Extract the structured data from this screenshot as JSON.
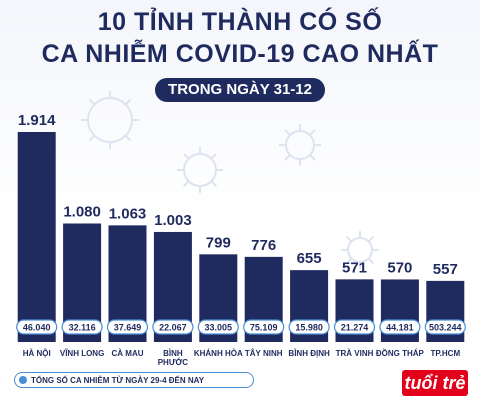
{
  "header": {
    "title_line1": "10 TỈNH THÀNH CÓ SỐ",
    "title_line2": "CA NHIỄM COVID-19 CAO NHẤT",
    "subtitle": "TRONG NGÀY 31-12"
  },
  "legend": {
    "label": "TỔNG SỐ CA NHIỄM TỪ NGÀY 29-4 ĐẾN NAY"
  },
  "logo": {
    "text": "tuổi trẻ"
  },
  "colors": {
    "bar": "#1f2a5e",
    "title": "#1f2a5e",
    "pill": "#4a8fd6",
    "logo": "#e3001b"
  },
  "chart_data": {
    "type": "bar",
    "title": "10 TỈNH THÀNH CÓ SỐ CA NHIỄM COVID-19 CAO NHẤT",
    "subtitle": "TRONG NGÀY 31-12",
    "categories": [
      "HÀ NỘI",
      "VĨNH LONG",
      "CÀ MAU",
      "BÌNH PHƯỚC",
      "KHÁNH HÒA",
      "TÂY NINH",
      "BÌNH ĐỊNH",
      "TRÀ VINH",
      "ĐỒNG THÁP",
      "TP.HCM"
    ],
    "values": [
      1914,
      1080,
      1063,
      1003,
      799,
      776,
      655,
      571,
      570,
      557
    ],
    "value_labels": [
      "1.914",
      "1.080",
      "1.063",
      "1.003",
      "799",
      "776",
      "655",
      "571",
      "570",
      "557"
    ],
    "totals_label": "TỔNG SỐ CA NHIỄM TỪ NGÀY 29-4 ĐẾN NAY",
    "totals": [
      46040,
      32116,
      37649,
      22067,
      33005,
      75109,
      15980,
      21274,
      44181,
      503244
    ],
    "total_labels": [
      "46.040",
      "32.116",
      "37.649",
      "22.067",
      "33.005",
      "75.109",
      "15.980",
      "21.274",
      "44.181",
      "503.244"
    ],
    "ylim": [
      0,
      1914
    ],
    "grid": false
  }
}
